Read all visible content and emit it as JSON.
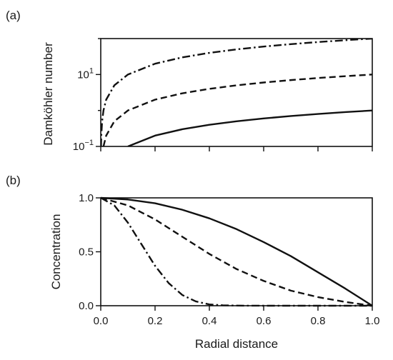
{
  "chart_data": [
    {
      "panel": "(a)",
      "type": "line",
      "ylabel": "Damköhler number",
      "xlabel": "",
      "yscale": "log",
      "xlim": [
        0,
        1
      ],
      "ylim": [
        0.1,
        100
      ],
      "yticks": [
        {
          "base": "10",
          "exp": "−1",
          "value": 0.1
        },
        {
          "base": "10",
          "exp": "1",
          "value": 10
        }
      ],
      "x_tick_labels_shown": false,
      "series": [
        {
          "style": "solid",
          "x": [
            0.1,
            0.2,
            0.3,
            0.4,
            0.5,
            0.6,
            0.7,
            0.8,
            0.9,
            1.0
          ],
          "y": [
            0.1,
            0.2,
            0.3,
            0.4,
            0.5,
            0.6,
            0.7,
            0.8,
            0.9,
            1.0
          ]
        },
        {
          "style": "dashed",
          "x": [
            0.01,
            0.02,
            0.05,
            0.1,
            0.2,
            0.3,
            0.4,
            0.5,
            0.6,
            0.7,
            0.8,
            0.9,
            1.0
          ],
          "y": [
            0.1,
            0.2,
            0.5,
            1,
            2,
            3,
            4,
            5,
            6,
            7,
            8,
            9,
            10
          ]
        },
        {
          "style": "dash-dot",
          "x": [
            0.001,
            0.002,
            0.005,
            0.01,
            0.02,
            0.05,
            0.1,
            0.2,
            0.3,
            0.4,
            0.5,
            0.6,
            0.7,
            0.8,
            0.9,
            1.0
          ],
          "y": [
            0.1,
            0.2,
            0.5,
            1,
            2,
            5,
            10,
            20,
            30,
            40,
            50,
            60,
            70,
            80,
            90,
            100
          ]
        }
      ]
    },
    {
      "panel": "(b)",
      "type": "line",
      "ylabel": "Concentration",
      "xlabel": "Radial distance",
      "xlim": [
        0,
        1
      ],
      "ylim": [
        0,
        1
      ],
      "xticks": [
        "0.0",
        "0.2",
        "0.4",
        "0.6",
        "0.8",
        "1.0"
      ],
      "yticks": [
        "0.0",
        "0.5",
        "1.0"
      ],
      "series": [
        {
          "style": "solid",
          "x": [
            0,
            0.1,
            0.2,
            0.3,
            0.4,
            0.5,
            0.6,
            0.7,
            0.8,
            0.9,
            1.0
          ],
          "y": [
            1.0,
            0.985,
            0.95,
            0.89,
            0.81,
            0.71,
            0.59,
            0.46,
            0.31,
            0.16,
            0.0
          ]
        },
        {
          "style": "dashed",
          "x": [
            0,
            0.1,
            0.2,
            0.3,
            0.4,
            0.5,
            0.6,
            0.7,
            0.8,
            0.9,
            1.0
          ],
          "y": [
            1.0,
            0.93,
            0.8,
            0.64,
            0.48,
            0.34,
            0.23,
            0.14,
            0.08,
            0.035,
            0.0
          ]
        },
        {
          "style": "dash-dot",
          "x": [
            0,
            0.05,
            0.1,
            0.15,
            0.2,
            0.25,
            0.3,
            0.35,
            0.4,
            0.45,
            0.5,
            0.6,
            0.8,
            1.0
          ],
          "y": [
            1.0,
            0.93,
            0.77,
            0.57,
            0.37,
            0.21,
            0.1,
            0.04,
            0.012,
            0.004,
            0.001,
            0.0,
            0.0,
            0.0
          ]
        }
      ]
    }
  ]
}
